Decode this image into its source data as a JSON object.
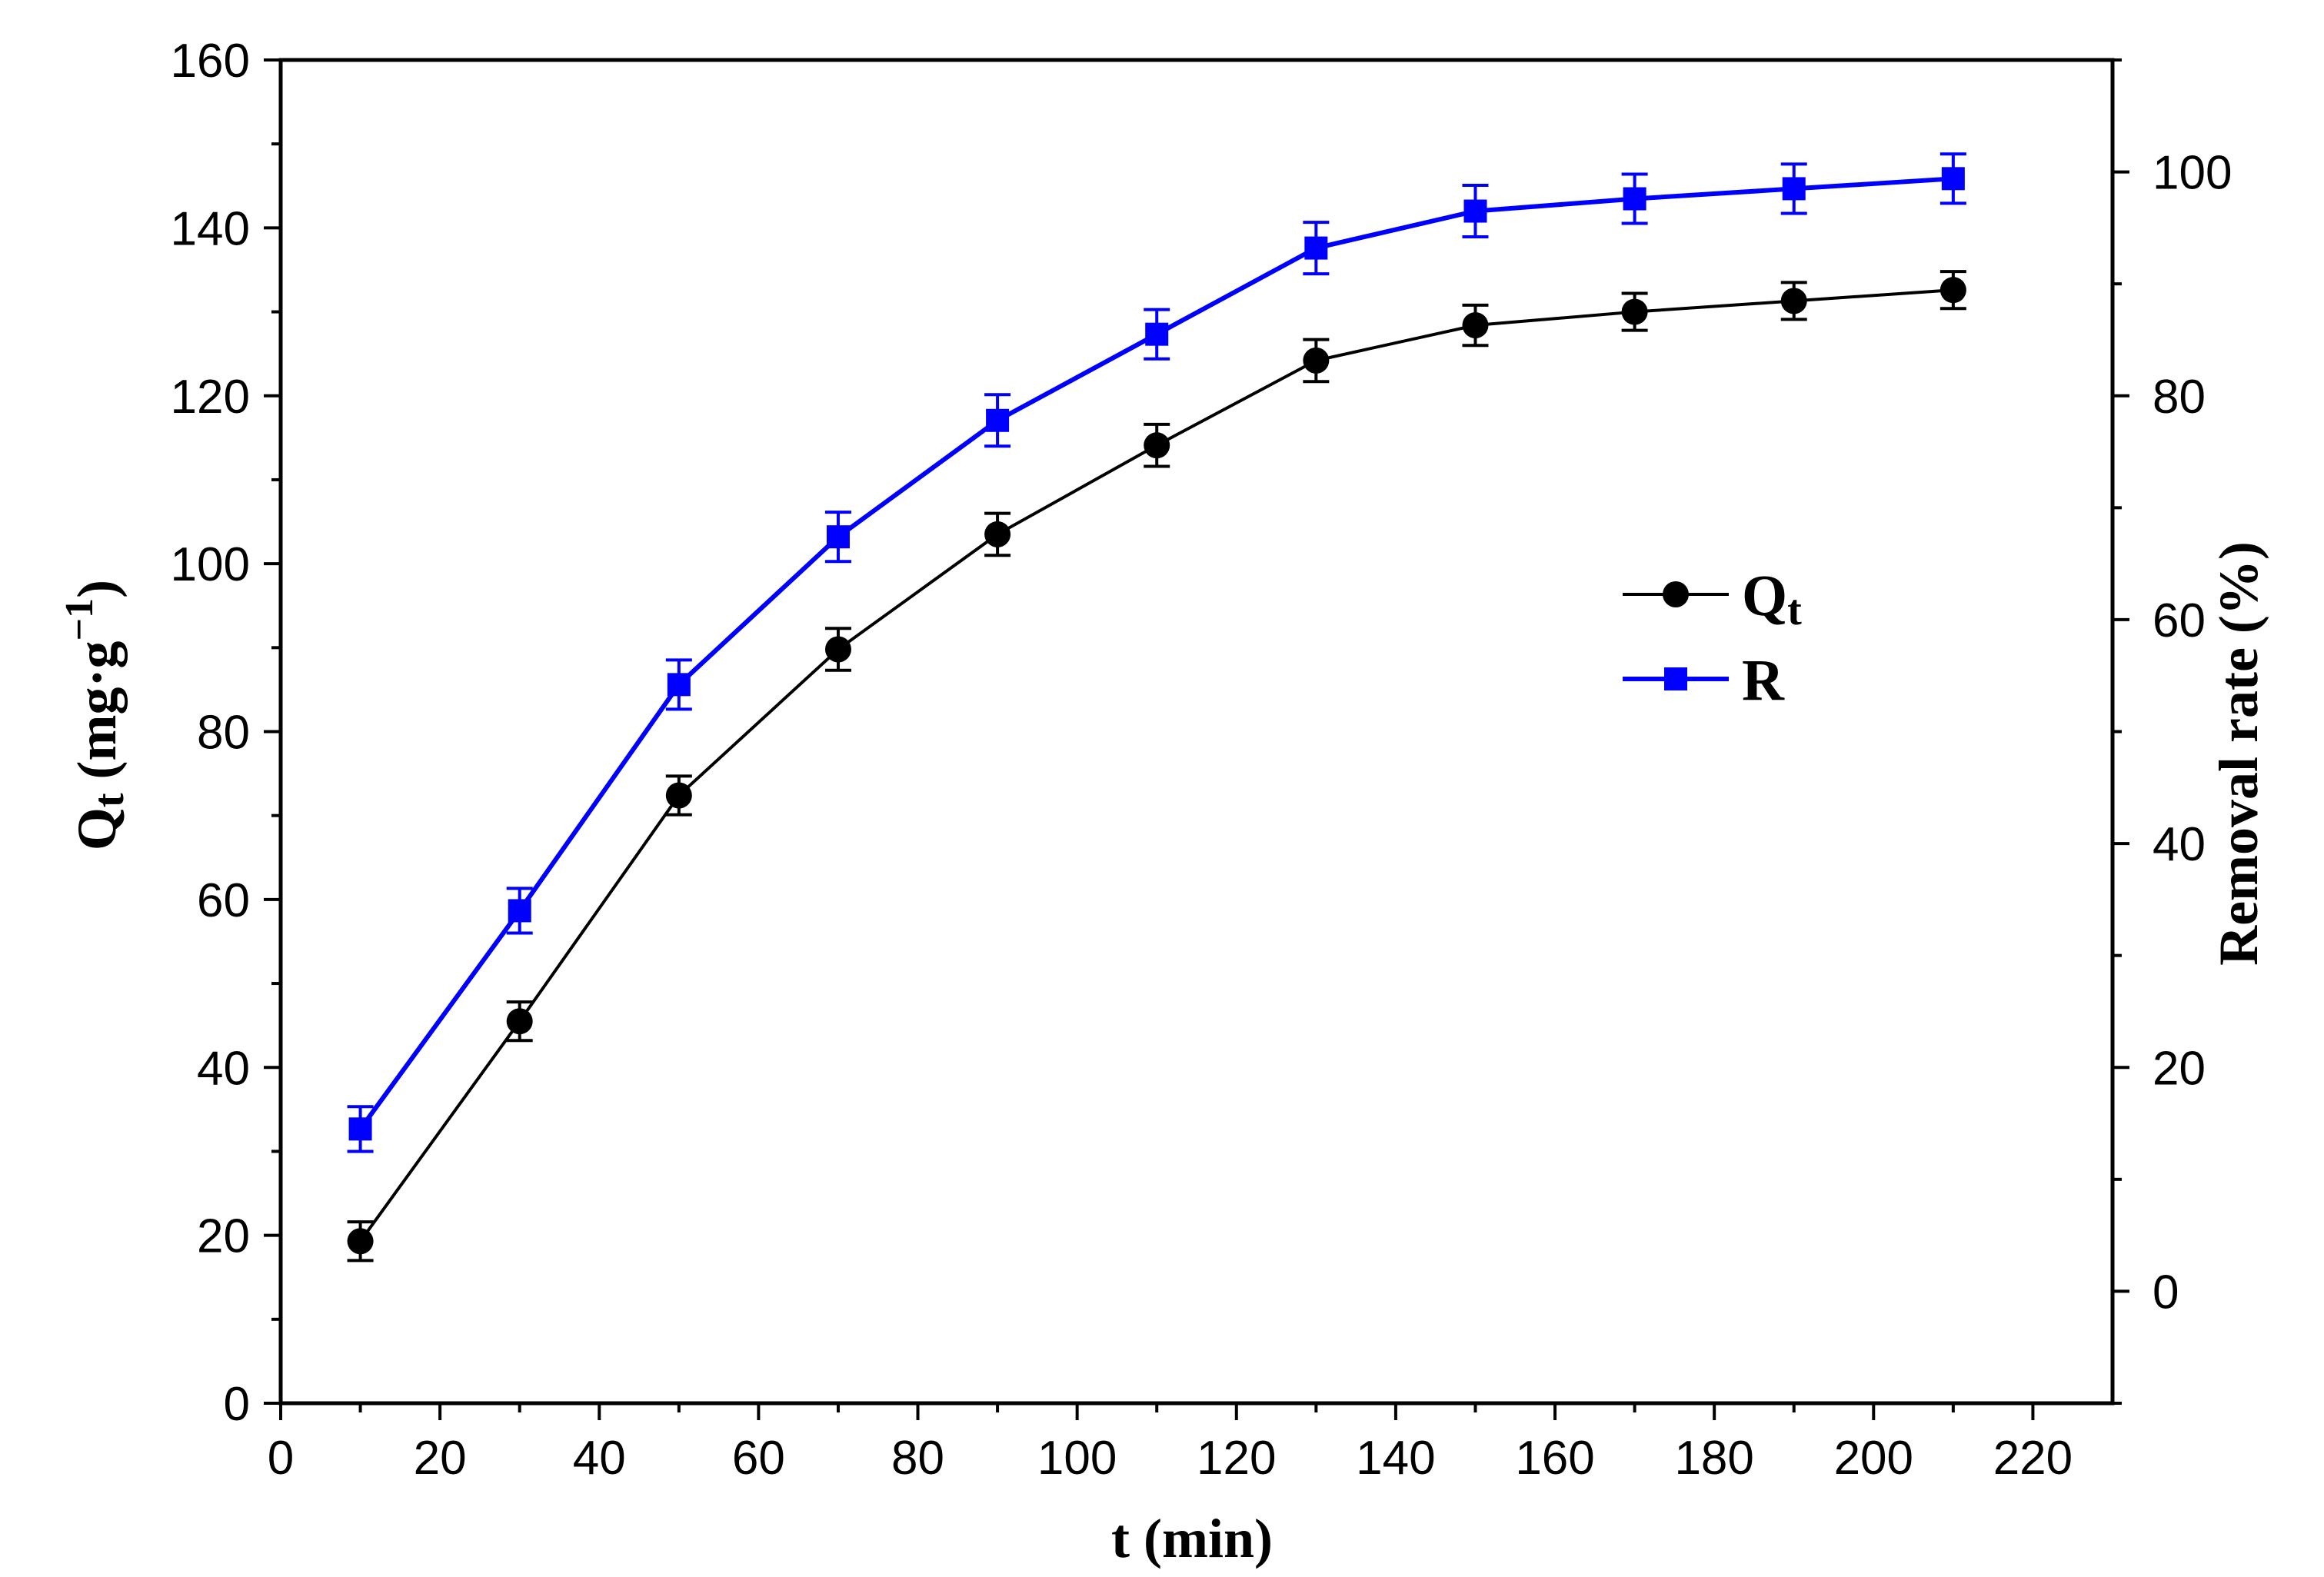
{
  "chart_data": {
    "type": "line",
    "x": [
      10,
      30,
      50,
      70,
      90,
      110,
      130,
      150,
      170,
      190,
      210
    ],
    "xlabel": "t (min)",
    "xlim": [
      0,
      230
    ],
    "xticks": [
      0,
      20,
      40,
      60,
      80,
      100,
      120,
      140,
      160,
      180,
      200,
      220
    ],
    "ylabel_left": {
      "main": "Q",
      "sub": "t",
      "unit_prefix": " (mg·g",
      "unit_sup": "−1",
      "unit_suffix": ")"
    },
    "ylim_left": [
      0,
      160
    ],
    "yticks_left": [
      0,
      20,
      40,
      60,
      80,
      100,
      120,
      140,
      160
    ],
    "ylabel_right": "Removal rate (%)",
    "ylim_right": [
      -10,
      110
    ],
    "yticks_right": [
      0,
      20,
      40,
      60,
      80,
      100
    ],
    "series": [
      {
        "name": "Qt",
        "legend_main": "Q",
        "legend_sub": "t",
        "axis": "left",
        "color": "#000000",
        "marker": "circle",
        "values": [
          19.3,
          45.5,
          72.4,
          89.8,
          103.5,
          114.1,
          124.2,
          128.4,
          130.0,
          131.3,
          132.6
        ],
        "error": [
          2.3,
          2.3,
          2.3,
          2.5,
          2.5,
          2.5,
          2.5,
          2.4,
          2.2,
          2.2,
          2.2
        ]
      },
      {
        "name": "R",
        "legend_main": "R",
        "legend_sub": "",
        "axis": "right",
        "color": "#0000ff",
        "marker": "square",
        "values": [
          14.5,
          34.0,
          54.2,
          67.4,
          77.8,
          85.5,
          93.2,
          96.5,
          97.6,
          98.5,
          99.4
        ],
        "error": [
          2.0,
          2.0,
          2.2,
          2.2,
          2.3,
          2.2,
          2.3,
          2.3,
          2.2,
          2.2,
          2.2
        ]
      }
    ],
    "grid": false,
    "legend_position": "right-middle"
  }
}
